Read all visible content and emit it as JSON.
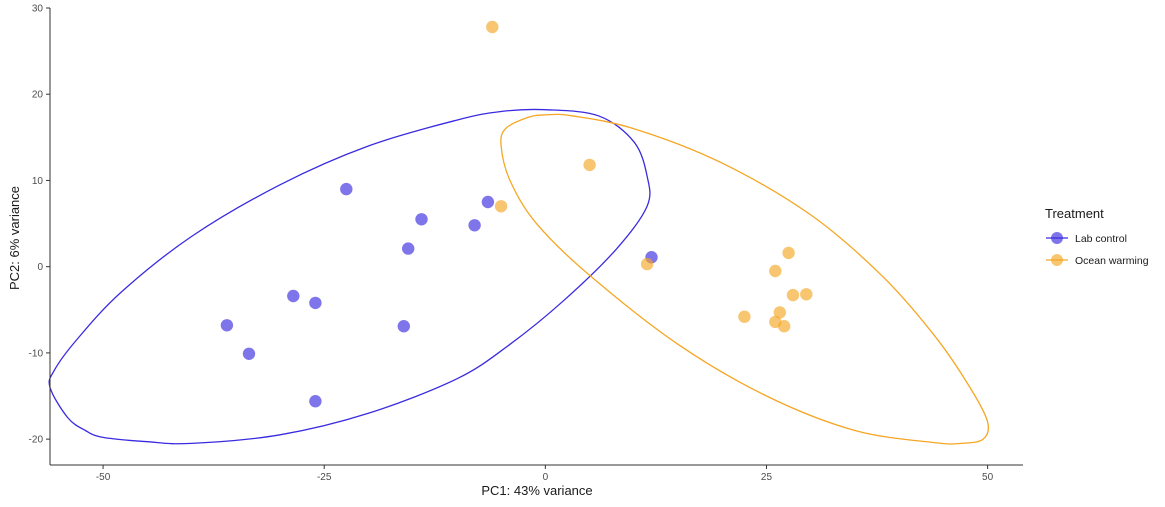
{
  "chart_data": {
    "type": "scatter",
    "title": "",
    "xlabel": "PC1: 43% variance",
    "ylabel": "PC2: 6% variance",
    "xlim": [
      -56,
      54
    ],
    "ylim": [
      -23,
      30
    ],
    "xticks": [
      -50,
      -25,
      0,
      25,
      50
    ],
    "yticks": [
      -20,
      -10,
      0,
      10,
      20,
      30
    ],
    "grid": false,
    "legend": {
      "title": "Treatment",
      "placement": "right"
    },
    "series": [
      {
        "name": "Lab control",
        "color": "#3b2be0",
        "points": [
          [
            -22.5,
            9.0
          ],
          [
            -14.0,
            5.5
          ],
          [
            -6.5,
            7.5
          ],
          [
            -8.0,
            4.8
          ],
          [
            -15.5,
            2.1
          ],
          [
            -28.5,
            -3.4
          ],
          [
            -26.0,
            -4.2
          ],
          [
            -36.0,
            -6.8
          ],
          [
            -16.0,
            -6.9
          ],
          [
            -33.5,
            -10.1
          ],
          [
            -26.0,
            -15.6
          ],
          [
            12.0,
            1.1
          ]
        ],
        "ellipse": [
          [
            -56.0,
            -14.0
          ],
          [
            -54.0,
            -17.5
          ],
          [
            -52.0,
            -19.0
          ],
          [
            -50.0,
            -19.8
          ],
          [
            -45.0,
            -20.3
          ],
          [
            -40.0,
            -20.5
          ],
          [
            -30.0,
            -19.5
          ],
          [
            -20.0,
            -17.0
          ],
          [
            -10.0,
            -13.0
          ],
          [
            -4.0,
            -9.0
          ],
          [
            2.0,
            -4.0
          ],
          [
            8.0,
            2.0
          ],
          [
            11.5,
            7.0
          ],
          [
            11.5,
            10.5
          ],
          [
            10.0,
            14.5
          ],
          [
            6.0,
            17.5
          ],
          [
            0.0,
            18.2
          ],
          [
            -5.0,
            18.0
          ],
          [
            -10.0,
            17.0
          ],
          [
            -20.0,
            14.0
          ],
          [
            -30.0,
            9.5
          ],
          [
            -40.0,
            3.5
          ],
          [
            -48.0,
            -3.0
          ],
          [
            -53.0,
            -8.5
          ],
          [
            -55.5,
            -12.0
          ],
          [
            -56.0,
            -14.0
          ]
        ]
      },
      {
        "name": "Ocean warming",
        "color": "#f5a623",
        "points": [
          [
            -6.0,
            27.8
          ],
          [
            5.0,
            11.8
          ],
          [
            -5.0,
            7.0
          ],
          [
            11.5,
            0.3
          ],
          [
            26.0,
            -0.5
          ],
          [
            27.5,
            1.6
          ],
          [
            28.0,
            -3.3
          ],
          [
            29.5,
            -3.2
          ],
          [
            22.5,
            -5.8
          ],
          [
            26.5,
            -5.3
          ],
          [
            26.0,
            -6.4
          ],
          [
            27.0,
            -6.9
          ]
        ],
        "ellipse": [
          [
            -5.0,
            14.0
          ],
          [
            -4.5,
            16.0
          ],
          [
            -2.0,
            17.3
          ],
          [
            0.0,
            17.6
          ],
          [
            3.0,
            17.5
          ],
          [
            10.0,
            16.0
          ],
          [
            20.0,
            12.0
          ],
          [
            30.0,
            6.0
          ],
          [
            38.0,
            -1.0
          ],
          [
            44.0,
            -8.0
          ],
          [
            48.0,
            -14.0
          ],
          [
            50.0,
            -18.0
          ],
          [
            49.5,
            -20.0
          ],
          [
            47.0,
            -20.5
          ],
          [
            44.0,
            -20.4
          ],
          [
            35.0,
            -19.0
          ],
          [
            25.0,
            -15.0
          ],
          [
            15.0,
            -9.0
          ],
          [
            5.0,
            -1.0
          ],
          [
            -1.0,
            5.0
          ],
          [
            -4.0,
            10.0
          ],
          [
            -5.0,
            14.0
          ]
        ]
      }
    ]
  }
}
